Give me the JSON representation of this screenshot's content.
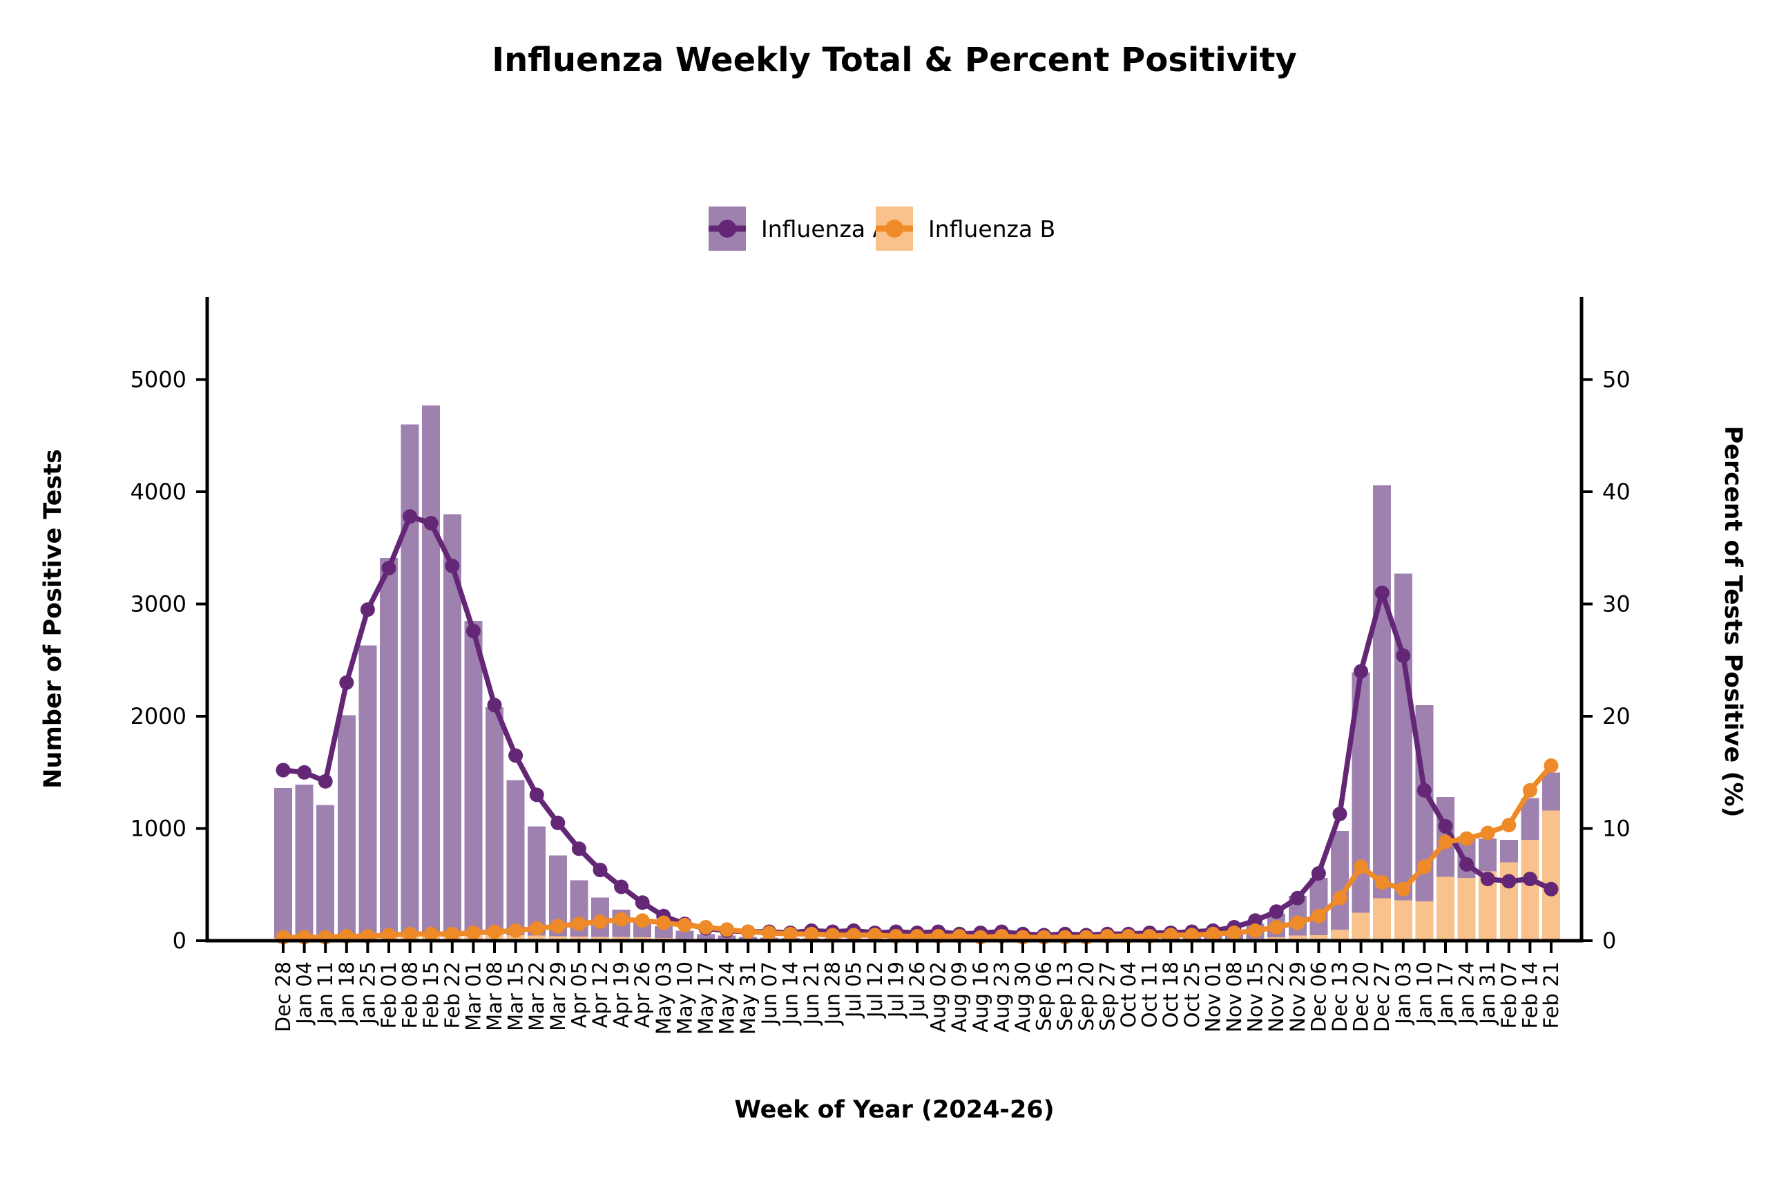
{
  "chart_data": {
    "type": "combo-bar-line",
    "title": "Influenza Weekly Total & Percent Positivity",
    "xlabel": "Week of Year (2024-26)",
    "ylabel_left": "Number of Positive Tests",
    "ylabel_right": "Percent of Tests Positive (%)",
    "ylim_left": [
      0,
      5000
    ],
    "ylim_right": [
      0,
      50
    ],
    "yticks_left": [
      0,
      1000,
      2000,
      3000,
      4000,
      5000
    ],
    "yticks_right": [
      0,
      10,
      20,
      30,
      40,
      50
    ],
    "grid": "off",
    "legend_position": "top-center",
    "bars_stacked": true,
    "categories": [
      "Dec 28",
      "Jan 04",
      "Jan 11",
      "Jan 18",
      "Jan 25",
      "Feb 01",
      "Feb 08",
      "Feb 15",
      "Feb 22",
      "Mar 01",
      "Mar 08",
      "Mar 15",
      "Mar 22",
      "Mar 29",
      "Apr 05",
      "Apr 12",
      "Apr 19",
      "Apr 26",
      "May 03",
      "May 10",
      "May 17",
      "May 24",
      "May 31",
      "Jun 07",
      "Jun 14",
      "Jun 21",
      "Jun 28",
      "Jul 05",
      "Jul 12",
      "Jul 19",
      "Jul 26",
      "Aug 02",
      "Aug 09",
      "Aug 16",
      "Aug 23",
      "Aug 30",
      "Sep 06",
      "Sep 13",
      "Sep 20",
      "Sep 27",
      "Oct 04",
      "Oct 11",
      "Oct 18",
      "Oct 25",
      "Nov 01",
      "Nov 08",
      "Nov 15",
      "Nov 22",
      "Nov 29",
      "Dec 06",
      "Dec 13",
      "Dec 20",
      "Dec 27",
      "Jan 03",
      "Jan 10",
      "Jan 17",
      "Jan 24",
      "Jan 31",
      "Feb 07",
      "Feb 14",
      "Feb 21"
    ],
    "series": [
      {
        "name": "Influenza A",
        "kind": "bar",
        "stack_layer": "top",
        "axis": "left",
        "color": "#9f81b0",
        "values": [
          1335,
          1360,
          1185,
          1975,
          2585,
          3355,
          4530,
          4695,
          3735,
          2790,
          2025,
          1380,
          975,
          720,
          500,
          350,
          245,
          160,
          105,
          70,
          45,
          35,
          25,
          20,
          18,
          16,
          15,
          14,
          13,
          12,
          12,
          11,
          10,
          10,
          10,
          10,
          11,
          12,
          13,
          15,
          18,
          22,
          28,
          38,
          52,
          83,
          130,
          210,
          355,
          510,
          880,
          2140,
          3680,
          2910,
          1750,
          710,
          370,
          290,
          200,
          370,
          340
        ]
      },
      {
        "name": "Influenza B",
        "kind": "bar",
        "stack_layer": "bottom",
        "axis": "left",
        "color": "#f9c28c",
        "values": [
          25,
          30,
          25,
          35,
          45,
          55,
          70,
          75,
          65,
          60,
          55,
          50,
          45,
          40,
          38,
          35,
          33,
          30,
          25,
          20,
          15,
          12,
          10,
          8,
          7,
          7,
          6,
          6,
          5,
          5,
          5,
          4,
          4,
          4,
          4,
          4,
          4,
          5,
          5,
          5,
          6,
          6,
          7,
          8,
          10,
          12,
          20,
          30,
          45,
          50,
          100,
          250,
          380,
          360,
          350,
          570,
          560,
          620,
          700,
          900,
          1160
        ]
      },
      {
        "name": "Influenza A",
        "kind": "line",
        "axis": "right",
        "color": "#632775",
        "values": [
          15.2,
          15.0,
          14.2,
          23.0,
          29.5,
          33.2,
          37.8,
          37.2,
          33.4,
          27.6,
          21.0,
          16.5,
          13.0,
          10.5,
          8.2,
          6.3,
          4.8,
          3.4,
          2.2,
          1.5,
          1.1,
          0.9,
          0.8,
          0.8,
          0.7,
          0.9,
          0.8,
          0.9,
          0.7,
          0.8,
          0.7,
          0.8,
          0.6,
          0.7,
          0.8,
          0.6,
          0.5,
          0.6,
          0.5,
          0.6,
          0.6,
          0.7,
          0.7,
          0.8,
          0.9,
          1.2,
          1.8,
          2.6,
          3.8,
          6.0,
          11.3,
          24.0,
          31.0,
          25.4,
          13.4,
          10.2,
          6.8,
          5.5,
          5.3,
          5.5,
          4.6
        ]
      },
      {
        "name": "Influenza B",
        "kind": "line",
        "axis": "right",
        "color": "#ee8a28",
        "values": [
          0.3,
          0.3,
          0.3,
          0.4,
          0.4,
          0.5,
          0.6,
          0.6,
          0.6,
          0.7,
          0.8,
          0.9,
          1.1,
          1.3,
          1.5,
          1.7,
          1.9,
          1.8,
          1.6,
          1.4,
          1.2,
          1.0,
          0.8,
          0.7,
          0.6,
          0.6,
          0.5,
          0.5,
          0.5,
          0.4,
          0.4,
          0.4,
          0.4,
          0.3,
          0.4,
          0.3,
          0.3,
          0.3,
          0.3,
          0.4,
          0.4,
          0.4,
          0.5,
          0.5,
          0.6,
          0.7,
          0.9,
          1.2,
          1.6,
          2.2,
          3.8,
          6.6,
          5.2,
          4.6,
          6.6,
          8.8,
          9.1,
          9.6,
          10.3,
          13.4,
          15.6
        ]
      }
    ],
    "legend": [
      {
        "label": "Influenza A",
        "swatch_color": "#9f81b0",
        "line_color": "#632775"
      },
      {
        "label": "Influenza B",
        "swatch_color": "#f9c28c",
        "line_color": "#ee8a28"
      }
    ]
  }
}
